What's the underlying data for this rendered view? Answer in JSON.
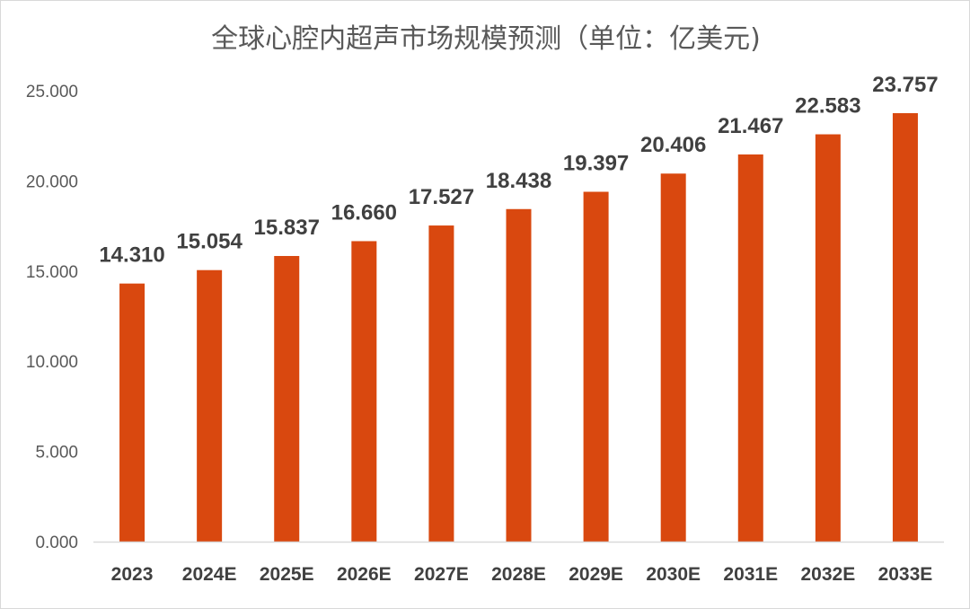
{
  "chart_data": {
    "type": "bar",
    "title": "全球心腔内超声市场规模预测（单位：亿美元)",
    "xlabel": "",
    "ylabel": "",
    "categories": [
      "2023",
      "2024E",
      "2025E",
      "2026E",
      "2027E",
      "2028E",
      "2029E",
      "2030E",
      "2031E",
      "2032E",
      "2033E"
    ],
    "values": [
      14.31,
      15.054,
      15.837,
      16.66,
      17.527,
      18.438,
      19.397,
      20.406,
      21.467,
      22.583,
      23.757
    ],
    "value_labels": [
      "14.310",
      "15.054",
      "15.837",
      "16.660",
      "17.527",
      "18.438",
      "19.397",
      "20.406",
      "21.467",
      "22.583",
      "23.757"
    ],
    "yticks": [
      "0.000",
      "5.000",
      "10.000",
      "15.000",
      "20.000",
      "25.000"
    ],
    "ylim": [
      0,
      25
    ],
    "grid": false,
    "bar_color": "#d9480f"
  }
}
